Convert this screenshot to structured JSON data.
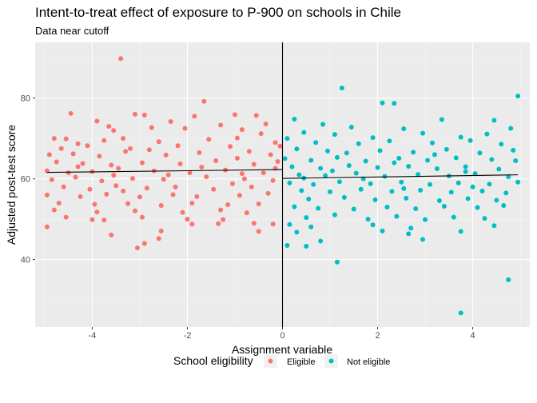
{
  "chart_data": {
    "type": "scatter",
    "title": "Intent-to-treat effect of exposure to P-900 on schools in Chile",
    "subtitle": "Data near cutoff",
    "xlabel": "Assignment variable",
    "ylabel": "Adjusted post-test score",
    "xlim": [
      -5.2,
      5.2
    ],
    "ylim": [
      23.3,
      93.8
    ],
    "xticks": [
      -4,
      -2,
      0,
      2,
      4
    ],
    "yticks": [
      40,
      60,
      80
    ],
    "cutoff": 0,
    "grid": true,
    "legend_position": "bottom",
    "legend_title": "School eligibility",
    "series": [
      {
        "name": "Eligible",
        "color": "#F8766D",
        "fit": {
          "x": [
            -4.95,
            0
          ],
          "y": [
            61.6,
            62.3
          ]
        },
        "points": [
          [
            -3.4,
            89.8
          ],
          [
            -1.65,
            79.2
          ],
          [
            -4.45,
            76.2
          ],
          [
            -3.1,
            76.0
          ],
          [
            -2.9,
            75.8
          ],
          [
            -1.0,
            75.9
          ],
          [
            -1.85,
            75.5
          ],
          [
            -0.55,
            75.7
          ],
          [
            -3.9,
            74.3
          ],
          [
            -3.65,
            73.0
          ],
          [
            -2.35,
            74.2
          ],
          [
            -1.3,
            73.3
          ],
          [
            -0.35,
            73.6
          ],
          [
            -3.55,
            72.0
          ],
          [
            -2.75,
            72.7
          ],
          [
            -2.05,
            72.5
          ],
          [
            -0.85,
            72.2
          ],
          [
            -4.8,
            70.0
          ],
          [
            -4.55,
            69.9
          ],
          [
            -4.3,
            68.7
          ],
          [
            -3.75,
            69.5
          ],
          [
            -3.35,
            70.0
          ],
          [
            -2.6,
            69.2
          ],
          [
            -1.55,
            69.8
          ],
          [
            -0.95,
            70.1
          ],
          [
            -0.45,
            71.2
          ],
          [
            -0.15,
            69.0
          ],
          [
            -4.65,
            67.5
          ],
          [
            -4.1,
            68.2
          ],
          [
            -3.2,
            67.5
          ],
          [
            -2.2,
            68.2
          ],
          [
            -1.1,
            68.0
          ],
          [
            -0.05,
            68.1
          ],
          [
            -4.9,
            66.0
          ],
          [
            -4.4,
            66.2
          ],
          [
            -3.85,
            65.6
          ],
          [
            -3.3,
            66.8
          ],
          [
            -2.45,
            65.9
          ],
          [
            -1.75,
            66.5
          ],
          [
            -0.7,
            66.8
          ],
          [
            -0.25,
            66.0
          ],
          [
            -4.75,
            64.2
          ],
          [
            -4.2,
            63.8
          ],
          [
            -3.6,
            63.4
          ],
          [
            -2.95,
            64.0
          ],
          [
            -2.15,
            63.7
          ],
          [
            -1.4,
            64.5
          ],
          [
            -0.6,
            63.6
          ],
          [
            -0.1,
            64.3
          ],
          [
            -4.95,
            62.0
          ],
          [
            -4.5,
            61.5
          ],
          [
            -4.0,
            61.8
          ],
          [
            -3.45,
            62.6
          ],
          [
            -2.7,
            62.0
          ],
          [
            -1.95,
            61.5
          ],
          [
            -1.2,
            62.2
          ],
          [
            -0.4,
            61.5
          ],
          [
            -4.85,
            59.8
          ],
          [
            -4.35,
            60.4
          ],
          [
            -3.8,
            59.5
          ],
          [
            -3.15,
            60.1
          ],
          [
            -2.5,
            59.9
          ],
          [
            -1.6,
            60.5
          ],
          [
            -0.8,
            60.0
          ],
          [
            -0.2,
            59.6
          ],
          [
            -4.6,
            58.0
          ],
          [
            -4.05,
            57.4
          ],
          [
            -3.5,
            58.3
          ],
          [
            -2.85,
            57.7
          ],
          [
            -2.25,
            58.0
          ],
          [
            -1.45,
            57.4
          ],
          [
            -0.65,
            58.0
          ],
          [
            -4.95,
            56.0
          ],
          [
            -4.25,
            55.6
          ],
          [
            -3.7,
            56.2
          ],
          [
            -3.0,
            55.5
          ],
          [
            -2.3,
            56.1
          ],
          [
            -1.8,
            55.6
          ],
          [
            -0.9,
            55.9
          ],
          [
            -0.3,
            56.4
          ],
          [
            -4.7,
            54.0
          ],
          [
            -3.95,
            53.7
          ],
          [
            -3.25,
            53.9
          ],
          [
            -2.55,
            53.4
          ],
          [
            -1.9,
            54.0
          ],
          [
            -1.15,
            53.6
          ],
          [
            -0.5,
            53.8
          ],
          [
            -4.8,
            52.3
          ],
          [
            -3.9,
            51.8
          ],
          [
            -3.1,
            52.1
          ],
          [
            -2.1,
            51.7
          ],
          [
            -1.3,
            52.3
          ],
          [
            -0.75,
            51.6
          ],
          [
            -4.55,
            50.5
          ],
          [
            -3.75,
            49.8
          ],
          [
            -2.95,
            50.5
          ],
          [
            -2.0,
            50.0
          ],
          [
            -1.25,
            49.9
          ],
          [
            -0.6,
            49.0
          ],
          [
            -0.2,
            48.8
          ],
          [
            -4.95,
            48.1
          ],
          [
            -3.6,
            46.1
          ],
          [
            -2.55,
            47.1
          ],
          [
            -0.5,
            47.0
          ],
          [
            -2.9,
            44.0
          ],
          [
            -3.05,
            42.9
          ],
          [
            -1.35,
            48.9
          ],
          [
            -2.6,
            45.2
          ],
          [
            -1.9,
            48.8
          ],
          [
            -4.0,
            49.9
          ],
          [
            -3.55,
            60.9
          ],
          [
            -2.8,
            67.2
          ],
          [
            -1.7,
            62.9
          ],
          [
            -0.95,
            65.1
          ],
          [
            -0.15,
            62.6
          ],
          [
            -4.3,
            63.0
          ],
          [
            -2.4,
            61.0
          ],
          [
            -1.05,
            58.8
          ],
          [
            -3.35,
            57.0
          ],
          [
            -0.85,
            61.3
          ]
        ]
      },
      {
        "name": "Not eligible",
        "color": "#00BFC4",
        "fit": {
          "x": [
            0,
            4.95
          ],
          "y": [
            60.1,
            61.0
          ]
        },
        "points": [
          [
            1.25,
            82.5
          ],
          [
            4.95,
            80.5
          ],
          [
            2.1,
            78.8
          ],
          [
            2.35,
            78.7
          ],
          [
            0.25,
            74.8
          ],
          [
            0.85,
            73.5
          ],
          [
            1.45,
            72.8
          ],
          [
            2.55,
            72.4
          ],
          [
            3.35,
            74.7
          ],
          [
            4.45,
            74.5
          ],
          [
            0.45,
            71.5
          ],
          [
            1.1,
            71.0
          ],
          [
            1.9,
            70.2
          ],
          [
            2.95,
            71.3
          ],
          [
            3.75,
            70.3
          ],
          [
            4.3,
            71.1
          ],
          [
            4.8,
            72.5
          ],
          [
            0.1,
            70.0
          ],
          [
            0.7,
            69.0
          ],
          [
            1.6,
            68.7
          ],
          [
            2.25,
            69.4
          ],
          [
            3.15,
            68.9
          ],
          [
            3.95,
            69.5
          ],
          [
            4.6,
            68.6
          ],
          [
            0.3,
            67.4
          ],
          [
            0.95,
            66.9
          ],
          [
            1.35,
            66.4
          ],
          [
            2.05,
            67.0
          ],
          [
            2.75,
            66.6
          ],
          [
            3.45,
            67.3
          ],
          [
            4.15,
            66.4
          ],
          [
            4.85,
            67.1
          ],
          [
            0.05,
            65.0
          ],
          [
            0.6,
            64.6
          ],
          [
            1.15,
            65.3
          ],
          [
            1.75,
            64.4
          ],
          [
            2.45,
            65.1
          ],
          [
            3.05,
            64.6
          ],
          [
            3.65,
            65.2
          ],
          [
            4.4,
            64.8
          ],
          [
            4.9,
            64.5
          ],
          [
            0.2,
            63.0
          ],
          [
            0.8,
            62.6
          ],
          [
            1.4,
            63.3
          ],
          [
            2.0,
            62.8
          ],
          [
            2.65,
            63.1
          ],
          [
            3.25,
            62.5
          ],
          [
            3.85,
            63.0
          ],
          [
            4.55,
            62.4
          ],
          [
            0.35,
            61.0
          ],
          [
            0.9,
            60.8
          ],
          [
            1.55,
            61.4
          ],
          [
            2.15,
            60.6
          ],
          [
            2.85,
            61.1
          ],
          [
            3.5,
            60.7
          ],
          [
            4.05,
            61.3
          ],
          [
            4.75,
            60.5
          ],
          [
            0.15,
            59.0
          ],
          [
            0.65,
            58.6
          ],
          [
            1.2,
            59.3
          ],
          [
            1.85,
            58.8
          ],
          [
            2.5,
            59.2
          ],
          [
            3.1,
            58.6
          ],
          [
            3.7,
            59.0
          ],
          [
            4.35,
            58.7
          ],
          [
            4.95,
            59.2
          ],
          [
            0.4,
            57.1
          ],
          [
            1.0,
            56.8
          ],
          [
            1.65,
            57.4
          ],
          [
            2.3,
            56.9
          ],
          [
            2.9,
            57.2
          ],
          [
            3.55,
            56.7
          ],
          [
            4.2,
            57.0
          ],
          [
            4.7,
            56.5
          ],
          [
            0.55,
            55.0
          ],
          [
            1.3,
            55.4
          ],
          [
            1.95,
            54.8
          ],
          [
            2.6,
            55.2
          ],
          [
            3.3,
            54.6
          ],
          [
            3.9,
            55.1
          ],
          [
            4.5,
            54.7
          ],
          [
            0.25,
            53.1
          ],
          [
            0.75,
            52.7
          ],
          [
            1.5,
            52.5
          ],
          [
            2.2,
            53.0
          ],
          [
            2.8,
            52.6
          ],
          [
            3.4,
            53.2
          ],
          [
            4.1,
            52.9
          ],
          [
            4.65,
            53.4
          ],
          [
            0.5,
            50.4
          ],
          [
            1.1,
            51.1
          ],
          [
            1.8,
            50.0
          ],
          [
            2.4,
            50.7
          ],
          [
            3.0,
            49.9
          ],
          [
            3.6,
            50.5
          ],
          [
            4.25,
            50.2
          ],
          [
            0.15,
            48.7
          ],
          [
            0.6,
            48.1
          ],
          [
            1.9,
            48.6
          ],
          [
            2.7,
            47.8
          ],
          [
            3.75,
            47.0
          ],
          [
            4.45,
            48.4
          ],
          [
            0.3,
            46.8
          ],
          [
            2.1,
            47.1
          ],
          [
            2.65,
            46.4
          ],
          [
            2.95,
            45.0
          ],
          [
            0.8,
            44.6
          ],
          [
            0.1,
            43.5
          ],
          [
            0.5,
            43.3
          ],
          [
            1.15,
            39.4
          ],
          [
            4.75,
            35.0
          ],
          [
            3.75,
            26.8
          ],
          [
            1.7,
            60.0
          ],
          [
            2.35,
            64.0
          ],
          [
            3.2,
            66.0
          ],
          [
            4.0,
            58.0
          ],
          [
            1.05,
            62.0
          ],
          [
            0.45,
            60.2
          ],
          [
            2.55,
            57.6
          ],
          [
            3.85,
            61.8
          ]
        ]
      }
    ]
  }
}
